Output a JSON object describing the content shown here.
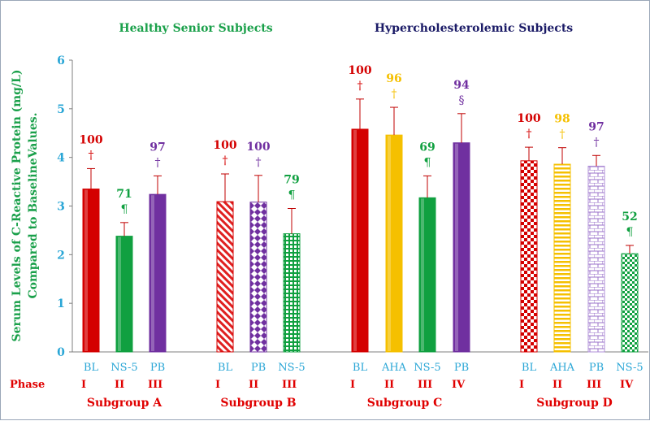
{
  "colors": {
    "axis_text": "#2aa6d6",
    "phase_text": "#e00000",
    "ylabel": "#1aa04a",
    "healthy_title": "#1aa04a",
    "hyper_title": "#1a1a66",
    "red": "#d40000",
    "green": "#10a040",
    "purple": "#7030a0",
    "gold": "#f5c000",
    "error": "#c00000"
  },
  "chart_data": {
    "type": "bar",
    "ylabel_line1": "Serum Levels of C-Reactive Protein (mg/L)",
    "ylabel_line2": "Compared to BaselineValues.",
    "ylim": [
      0,
      6
    ],
    "yticks": [
      "0",
      "1",
      "2",
      "3",
      "4",
      "5",
      "6"
    ],
    "group_titles": [
      {
        "text": "Healthy Senior  Subjects",
        "color_key": "healthy_title"
      },
      {
        "text": "Hypercholesterolemic Subjects",
        "color_key": "hyper_title"
      }
    ],
    "phase_label": "Phase",
    "subgroups": [
      {
        "name": "Subgroup  A",
        "bars": [
          {
            "category": "BL",
            "phase": "I",
            "value": 3.35,
            "error": 0.42,
            "label": "100",
            "symbol": "†",
            "color": "red",
            "pattern": "solid"
          },
          {
            "category": "NS-5",
            "phase": "II",
            "value": 2.38,
            "error": 0.28,
            "label": "71",
            "symbol": "¶",
            "color": "green",
            "pattern": "solid"
          },
          {
            "category": "PB",
            "phase": "III",
            "value": 3.24,
            "error": 0.38,
            "label": "97",
            "symbol": "†",
            "color": "purple",
            "pattern": "solid"
          }
        ]
      },
      {
        "name": "Subgroup  B",
        "bars": [
          {
            "category": "BL",
            "phase": "I",
            "value": 3.09,
            "error": 0.57,
            "label": "100",
            "symbol": "†",
            "color": "red",
            "pattern": "diagonal"
          },
          {
            "category": "PB",
            "phase": "II",
            "value": 3.08,
            "error": 0.55,
            "label": "100",
            "symbol": "†",
            "color": "purple",
            "pattern": "diamond"
          },
          {
            "category": "NS-5",
            "phase": "III",
            "value": 2.43,
            "error": 0.52,
            "label": "79",
            "symbol": "¶",
            "color": "green",
            "pattern": "grid"
          }
        ]
      },
      {
        "name": "Subgroup  C",
        "bars": [
          {
            "category": "BL",
            "phase": "I",
            "value": 4.58,
            "error": 0.62,
            "label": "100",
            "symbol": "†",
            "color": "red",
            "pattern": "solid"
          },
          {
            "category": "AHA",
            "phase": "II",
            "value": 4.46,
            "error": 0.57,
            "label": "96",
            "symbol": "†",
            "color": "gold",
            "pattern": "solid"
          },
          {
            "category": "NS-5",
            "phase": "III",
            "value": 3.17,
            "error": 0.45,
            "label": "69",
            "symbol": "¶",
            "color": "green",
            "pattern": "solid"
          },
          {
            "category": "PB",
            "phase": "IV",
            "value": 4.3,
            "error": 0.6,
            "label": "94",
            "symbol": "§",
            "color": "purple",
            "pattern": "solid"
          }
        ]
      },
      {
        "name": "Subgroup  D",
        "bars": [
          {
            "category": "BL",
            "phase": "I",
            "value": 3.93,
            "error": 0.28,
            "label": "100",
            "symbol": "†",
            "color": "red",
            "pattern": "check"
          },
          {
            "category": "AHA",
            "phase": "II",
            "value": 3.86,
            "error": 0.34,
            "label": "98",
            "symbol": "†",
            "color": "gold",
            "pattern": "hstripe"
          },
          {
            "category": "PB",
            "phase": "III",
            "value": 3.82,
            "error": 0.22,
            "label": "97",
            "symbol": "†",
            "color": "purple",
            "pattern": "brick"
          },
          {
            "category": "NS-5",
            "phase": "IV",
            "value": 2.02,
            "error": 0.17,
            "label": "52",
            "symbol": "¶",
            "color": "green",
            "pattern": "check"
          }
        ]
      }
    ]
  }
}
